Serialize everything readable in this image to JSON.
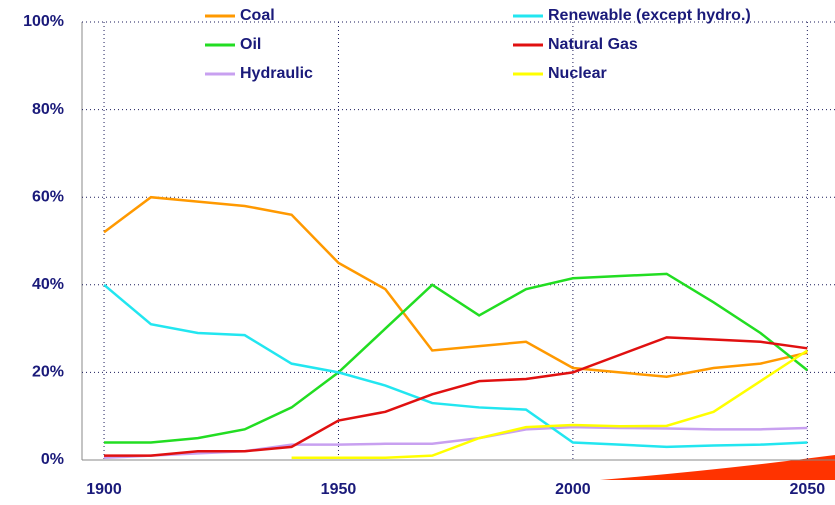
{
  "chart_data": {
    "type": "line",
    "x": [
      1900,
      1910,
      1920,
      1930,
      1940,
      1950,
      1960,
      1970,
      1980,
      1990,
      2000,
      2010,
      2020,
      2030,
      2040,
      2050
    ],
    "series": [
      {
        "name": "Coal",
        "color": "#ff9900",
        "values": [
          52,
          60,
          59,
          58,
          56,
          45,
          39,
          25,
          26,
          27,
          21,
          20,
          19,
          21,
          22,
          24.5
        ]
      },
      {
        "name": "Oil",
        "color": "#22dd22",
        "values": [
          4,
          4,
          5,
          7,
          12,
          20,
          30,
          40,
          33,
          39,
          41.5,
          42,
          42.5,
          36,
          29,
          20.5
        ]
      },
      {
        "name": "Hydraulic",
        "color": "#c8a0f0",
        "values": [
          0.5,
          1,
          1.5,
          2,
          3.5,
          3.5,
          3.7,
          3.7,
          5,
          7,
          7.5,
          7.3,
          7.2,
          7,
          7,
          7.3
        ]
      },
      {
        "name": "Renewable (except hydro.)",
        "color": "#22e6f0",
        "values": [
          40,
          31,
          29,
          28.5,
          22,
          20,
          17,
          13,
          12,
          11.5,
          4,
          3.5,
          3,
          3.3,
          3.5,
          4
        ]
      },
      {
        "name": "Natural Gas",
        "color": "#e01010",
        "values": [
          1,
          1,
          2,
          2,
          3,
          9,
          11,
          15,
          18,
          18.5,
          20,
          24,
          28,
          27.5,
          27,
          25.5
        ]
      },
      {
        "name": "Nuclear",
        "color": "#ffff00",
        "values": [
          null,
          null,
          null,
          null,
          0.5,
          0.5,
          0.5,
          1,
          5,
          7.5,
          8,
          7.7,
          7.8,
          11,
          18,
          25
        ]
      }
    ],
    "xlim": [
      1895.3,
      2055.9
    ],
    "xticks": [
      1900,
      1950,
      2000,
      2050
    ],
    "ylim": [
      0,
      100
    ],
    "yticks": [
      {
        "value": 0,
        "label": "0%"
      },
      {
        "value": 20,
        "label": "20%"
      },
      {
        "value": 40,
        "label": "40%"
      },
      {
        "value": 60,
        "label": "60%"
      },
      {
        "value": 80,
        "label": "80%"
      },
      {
        "value": 100,
        "label": "100%"
      }
    ],
    "grid": true
  }
}
